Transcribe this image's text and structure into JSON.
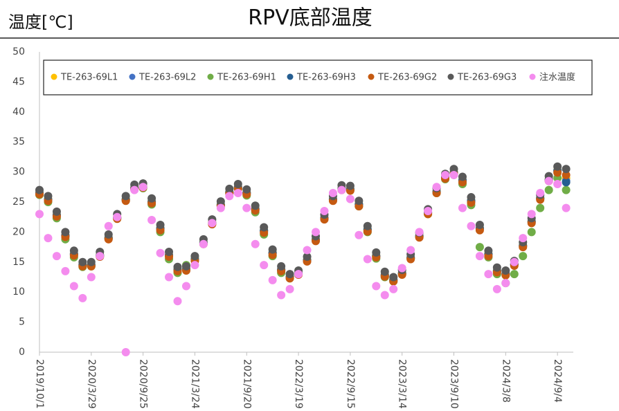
{
  "chart_data": {
    "type": "scatter",
    "title": "RPV底部温度",
    "ylabel": "温度[℃]",
    "x": [
      "2019/10/1",
      "2019/10/31",
      "2019/11/30",
      "2019/12/30",
      "2020/1/29",
      "2020/2/28",
      "2020/3/29",
      "2020/4/28",
      "2020/5/28",
      "2020/6/27",
      "2020/7/27",
      "2020/8/26",
      "2020/9/25",
      "2020/10/25",
      "2020/11/24",
      "2020/12/24",
      "2021/1/23",
      "2021/2/22",
      "2021/3/24",
      "2021/4/23",
      "2021/5/23",
      "2021/6/22",
      "2021/7/22",
      "2021/8/21",
      "2021/9/20",
      "2021/10/20",
      "2021/11/19",
      "2021/12/19",
      "2022/1/18",
      "2022/2/17",
      "2022/3/19",
      "2022/4/18",
      "2022/5/18",
      "2022/6/17",
      "2022/7/17",
      "2022/8/16",
      "2022/9/15",
      "2022/10/15",
      "2022/11/14",
      "2022/12/14",
      "2023/1/13",
      "2023/2/12",
      "2023/3/14",
      "2023/4/13",
      "2023/5/13",
      "2023/6/12",
      "2023/7/12",
      "2023/8/11",
      "2023/9/10",
      "2023/10/10",
      "2023/11/9",
      "2023/12/9",
      "2024/1/8",
      "2024/2/7",
      "2024/3/8",
      "2024/4/7",
      "2024/5/7",
      "2024/6/6",
      "2024/7/6",
      "2024/8/5",
      "2024/9/4",
      "2024/10/4"
    ],
    "series": [
      {
        "name": "TE-263-69L1",
        "color": "#ffc000",
        "values": [
          26.6,
          25.5,
          22.9,
          19.5,
          16.4,
          14.6,
          14.6,
          16.2,
          19.1,
          22.5,
          25.5,
          27.4,
          27.6,
          25.1,
          20.7,
          16.2,
          13.8,
          13.9,
          15.5,
          18.3,
          21.6,
          24.6,
          26.7,
          27.5,
          26.6,
          23.9,
          20.3,
          16.6,
          13.8,
          12.6,
          13.2,
          15.4,
          18.8,
          22.4,
          25.5,
          27.3,
          27.2,
          24.7,
          20.5,
          16.1,
          12.9,
          12.1,
          13.2,
          15.8,
          19.4,
          23.3,
          26.8,
          29.2,
          30.0,
          28.7,
          25.3,
          20.7,
          16.4,
          13.6,
          13.1,
          14.7,
          17.8,
          21.8,
          25.7,
          28.8,
          30.3,
          29.0
        ]
      },
      {
        "name": "TE-263-69L2",
        "color": "#4472c4",
        "values": [
          26.5,
          25.4,
          22.8,
          19.4,
          16.3,
          14.5,
          14.5,
          16.1,
          19.0,
          22.4,
          25.4,
          27.3,
          27.5,
          25.0,
          20.6,
          16.1,
          13.7,
          13.8,
          15.4,
          18.2,
          21.5,
          24.5,
          26.6,
          27.4,
          26.5,
          23.8,
          20.2,
          16.5,
          13.7,
          12.5,
          13.1,
          15.3,
          18.7,
          22.3,
          25.4,
          27.2,
          27.1,
          24.6,
          20.4,
          16.0,
          12.8,
          12.0,
          13.1,
          15.7,
          19.3,
          23.2,
          26.7,
          29.1,
          29.9,
          28.6,
          25.2,
          20.6,
          16.3,
          13.5,
          13.0,
          14.6,
          17.7,
          21.7,
          25.6,
          28.7,
          30.2,
          28.5
        ]
      },
      {
        "name": "TE-263-69H1",
        "color": "#70ad47",
        "values": [
          26.2,
          25.0,
          22.3,
          18.8,
          15.8,
          14.2,
          14.3,
          16.0,
          18.9,
          22.3,
          25.3,
          27.2,
          27.3,
          24.6,
          20.0,
          15.5,
          13.2,
          14.5,
          15.6,
          18.2,
          21.5,
          24.5,
          26.6,
          27.2,
          26.1,
          23.3,
          19.6,
          16.0,
          13.2,
          12.3,
          13.0,
          15.3,
          18.7,
          22.3,
          25.4,
          27.2,
          27.0,
          24.3,
          20.0,
          15.6,
          12.5,
          11.8,
          13.0,
          15.6,
          19.2,
          23.0,
          26.5,
          28.8,
          29.5,
          28.0,
          24.5,
          17.5,
          15.8,
          13.0,
          11.5,
          13.0,
          16.0,
          20.0,
          24.0,
          27.0,
          29.0,
          27.0
        ]
      },
      {
        "name": "TE-263-69H3",
        "color": "#255e91",
        "values": [
          26.5,
          25.4,
          22.8,
          19.4,
          16.3,
          14.5,
          14.5,
          16.1,
          19.0,
          22.4,
          25.4,
          27.3,
          27.5,
          25.0,
          20.6,
          16.1,
          13.7,
          13.8,
          15.4,
          18.2,
          21.5,
          24.5,
          26.6,
          27.4,
          26.5,
          23.8,
          20.2,
          16.5,
          13.7,
          12.5,
          13.1,
          15.3,
          18.7,
          22.3,
          25.4,
          27.2,
          27.1,
          24.6,
          20.4,
          16.0,
          12.8,
          12.0,
          13.1,
          15.7,
          19.3,
          23.2,
          26.7,
          29.1,
          29.9,
          28.6,
          25.2,
          20.6,
          16.3,
          13.5,
          13.0,
          14.6,
          17.7,
          21.7,
          25.6,
          28.7,
          30.2,
          28.3
        ]
      },
      {
        "name": "TE-263-69G2",
        "color": "#c55a11",
        "values": [
          26.3,
          25.2,
          22.6,
          19.2,
          16.1,
          14.3,
          14.3,
          15.9,
          18.8,
          22.2,
          25.2,
          27.1,
          27.4,
          24.8,
          20.3,
          15.9,
          13.5,
          13.6,
          15.2,
          18.0,
          21.3,
          24.3,
          26.4,
          27.2,
          26.3,
          23.6,
          19.9,
          16.2,
          13.5,
          12.3,
          12.9,
          15.1,
          18.5,
          22.1,
          25.2,
          27.0,
          26.9,
          24.3,
          20.1,
          15.8,
          12.6,
          11.8,
          12.9,
          15.5,
          19.1,
          23.0,
          26.5,
          28.9,
          29.7,
          28.3,
          24.9,
          20.3,
          16.0,
          13.3,
          12.8,
          14.4,
          17.5,
          21.5,
          25.4,
          28.5,
          29.9,
          29.5
        ]
      },
      {
        "name": "TE-263-69G3",
        "color": "#595959",
        "values": [
          27,
          26.0,
          23.4,
          20.0,
          16.9,
          15.0,
          15.0,
          16.7,
          19.6,
          23.0,
          26.0,
          27.9,
          28.1,
          25.6,
          21.2,
          16.7,
          14.2,
          14.3,
          16.0,
          18.8,
          22.1,
          25.1,
          27.2,
          28,
          27.1,
          24.4,
          20.8,
          17.1,
          14.3,
          13.0,
          13.6,
          15.9,
          19.3,
          22.9,
          26.0,
          27.8,
          27.7,
          25.2,
          21.0,
          16.6,
          13.4,
          12.5,
          13.7,
          16.3,
          19.9,
          23.8,
          27.3,
          29.7,
          30.5,
          29.2,
          25.8,
          21.2,
          16.9,
          14.1,
          13.6,
          15.2,
          18.3,
          22.3,
          26.2,
          29.3,
          30.9,
          30.5
        ]
      },
      {
        "name": "注水温度",
        "color": "#f48cee",
        "values": [
          23,
          19,
          16,
          13.5,
          11,
          9,
          12.5,
          16,
          21,
          22.5,
          0,
          27,
          27.5,
          22,
          16.5,
          12.5,
          8.5,
          11,
          14.5,
          18,
          21.5,
          24,
          26,
          26.5,
          24,
          18,
          14.5,
          12,
          9.5,
          10.5,
          13,
          17,
          20,
          23.5,
          26.5,
          27,
          25.5,
          19.5,
          15.5,
          11,
          9.5,
          10.5,
          14,
          17,
          20,
          23.5,
          27.5,
          29.5,
          29.5,
          24,
          21,
          16,
          13,
          10.5,
          11.5,
          15,
          19,
          23,
          26.5,
          28.5,
          28,
          24
        ]
      }
    ],
    "xlim": [
      "2019/10/1",
      "2024/10/29"
    ],
    "xticks": [
      "2019/10/1",
      "2020/3/29",
      "2020/9/25",
      "2021/3/24",
      "2021/9/20",
      "2022/3/19",
      "2022/9/15",
      "2023/3/14",
      "2023/9/10",
      "2024/3/8",
      "2024/9/4"
    ],
    "ylim": [
      0,
      50
    ],
    "yticks": [
      0,
      5,
      10,
      15,
      20,
      25,
      30,
      35,
      40,
      45,
      50
    ],
    "grid": false,
    "legend": "top"
  }
}
